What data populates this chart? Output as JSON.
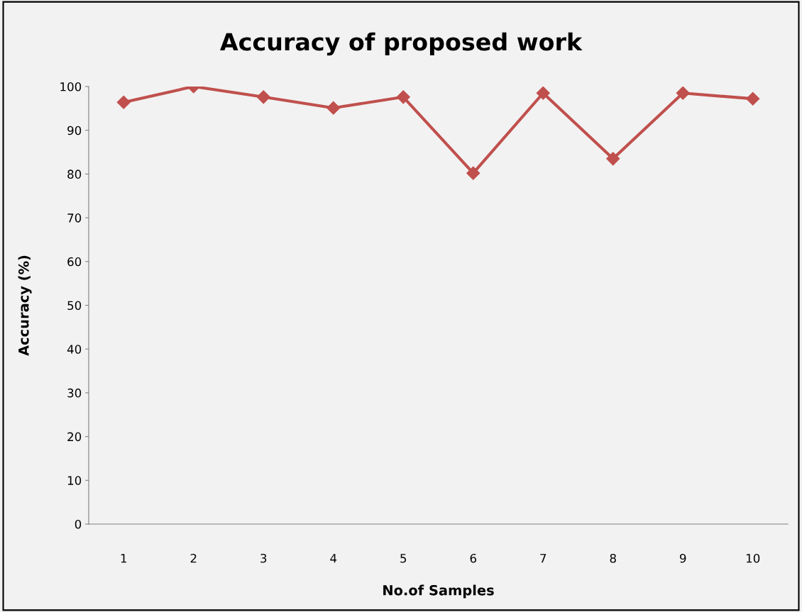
{
  "chart_data": {
    "type": "line",
    "title": "Accuracy of proposed work",
    "xlabel": "No.of Samples",
    "ylabel": "Accuracy (%)",
    "categories": [
      "1",
      "2",
      "3",
      "4",
      "5",
      "6",
      "7",
      "8",
      "9",
      "10"
    ],
    "series": [
      {
        "color": "#c0504d",
        "values": [
          96.4,
          100,
          97.6,
          95.1,
          97.6,
          80.2,
          98.5,
          83.5,
          98.5,
          97.2
        ]
      }
    ],
    "ylim": [
      0,
      100
    ],
    "yticks": [
      0,
      10,
      20,
      30,
      40,
      50,
      60,
      70,
      80,
      90,
      100
    ],
    "marker": "diamond",
    "line_style": "solid"
  }
}
